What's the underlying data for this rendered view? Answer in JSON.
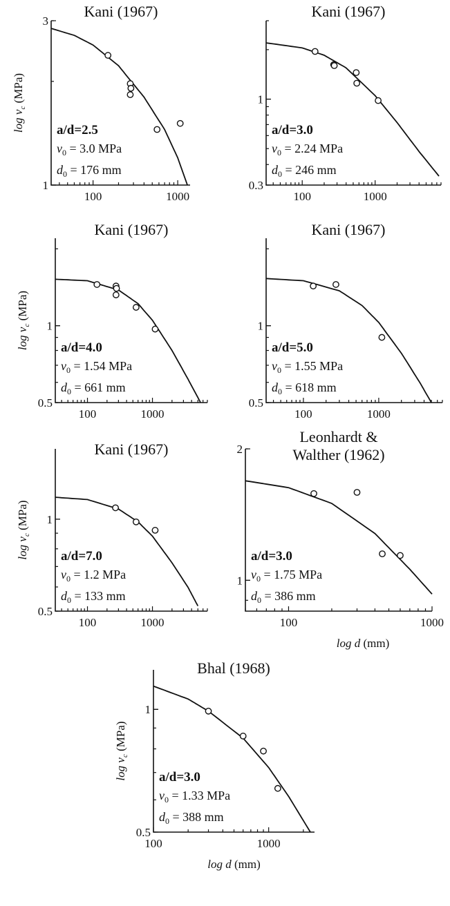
{
  "chart_data": [
    {
      "type": "scatter",
      "title": "Kani (1967)",
      "xscale": "log",
      "yscale": "log",
      "xlim": [
        32,
        1400
      ],
      "ylim": [
        1,
        3
      ],
      "xticks": [
        100,
        1000
      ],
      "xtick_labels": [
        "100",
        "1000"
      ],
      "yticks": [
        1,
        3
      ],
      "ytick_labels": [
        "1",
        "3"
      ],
      "ylabel": "log v_c (MPa)",
      "xlabel": "",
      "annotation": {
        "ad": "a/d=2.5",
        "v0": "v_0 = 3.0 MPa",
        "d0": "d_0 = 176 mm"
      },
      "points": {
        "x": [
          150,
          275,
          280,
          275,
          570,
          1070
        ],
        "y": [
          2.38,
          1.97,
          1.91,
          1.83,
          1.45,
          1.51
        ]
      },
      "curve": {
        "x": [
          32,
          60,
          100,
          200,
          400,
          700,
          1000,
          1300
        ],
        "y": [
          2.85,
          2.72,
          2.55,
          2.22,
          1.8,
          1.45,
          1.2,
          1.0
        ]
      }
    },
    {
      "type": "scatter",
      "title": "Kani (1967)",
      "xscale": "log",
      "yscale": "log",
      "xlim": [
        32,
        8000
      ],
      "ylim": [
        0.3,
        3
      ],
      "xticks": [
        100,
        1000
      ],
      "xtick_labels": [
        "100",
        "1000"
      ],
      "yticks": [
        0.3,
        1
      ],
      "ytick_labels": [
        "0.3",
        "1"
      ],
      "ylabel": "",
      "xlabel": "",
      "annotation": {
        "ad": "a/d=3.0",
        "v0": "v_0 = 2.24 MPa",
        "d0": "d_0 = 246 mm"
      },
      "points": {
        "x": [
          150,
          270,
          275,
          550,
          560,
          1100
        ],
        "y": [
          1.95,
          1.62,
          1.6,
          1.45,
          1.25,
          0.98
        ]
      },
      "curve": {
        "x": [
          32,
          100,
          200,
          400,
          1000,
          2000,
          4000,
          7500
        ],
        "y": [
          2.2,
          2.05,
          1.85,
          1.55,
          1.05,
          0.72,
          0.48,
          0.34
        ]
      }
    },
    {
      "type": "scatter",
      "title": "Kani (1967)",
      "xscale": "log",
      "yscale": "log",
      "xlim": [
        32,
        7000
      ],
      "ylim": [
        0.5,
        2.2
      ],
      "xticks": [
        100,
        1000
      ],
      "xtick_labels": [
        "100",
        "1000"
      ],
      "yticks": [
        0.5,
        1
      ],
      "ytick_labels": [
        "0.5",
        "1"
      ],
      "ylabel": "log v_c (MPa)",
      "xlabel": "",
      "annotation": {
        "ad": "a/d=4.0",
        "v0": "v_0 = 1.54 MPa",
        "d0": "d_0 = 661 mm"
      },
      "points": {
        "x": [
          140,
          275,
          280,
          275,
          560,
          1100
        ],
        "y": [
          1.45,
          1.43,
          1.4,
          1.32,
          1.18,
          0.97
        ]
      },
      "curve": {
        "x": [
          32,
          100,
          300,
          600,
          1000,
          2000,
          3500,
          5500
        ],
        "y": [
          1.52,
          1.5,
          1.38,
          1.22,
          1.05,
          0.8,
          0.62,
          0.5
        ]
      }
    },
    {
      "type": "scatter",
      "title": "Kani (1967)",
      "xscale": "log",
      "yscale": "log",
      "xlim": [
        32,
        7000
      ],
      "ylim": [
        0.5,
        2.2
      ],
      "xticks": [
        100,
        1000
      ],
      "xtick_labels": [
        "100",
        "1000"
      ],
      "yticks": [
        0.5,
        1
      ],
      "ytick_labels": [
        "0.5",
        "1"
      ],
      "ylabel": "",
      "xlabel": "",
      "annotation": {
        "ad": "a/d=5.0",
        "v0": "v_0 = 1.55 MPa",
        "d0": "d_0 = 618 mm"
      },
      "points": {
        "x": [
          135,
          270,
          1100
        ],
        "y": [
          1.43,
          1.45,
          0.9
        ]
      },
      "curve": {
        "x": [
          32,
          100,
          300,
          600,
          1000,
          2000,
          3500,
          5000
        ],
        "y": [
          1.53,
          1.5,
          1.37,
          1.2,
          1.03,
          0.78,
          0.6,
          0.5
        ]
      }
    },
    {
      "type": "scatter",
      "title": "Kani (1967)",
      "xscale": "log",
      "yscale": "log",
      "xlim": [
        32,
        7000
      ],
      "ylim": [
        0.5,
        1.7
      ],
      "xticks": [
        100,
        1000
      ],
      "xtick_labels": [
        "100",
        "1000"
      ],
      "yticks": [
        0.5,
        1
      ],
      "ytick_labels": [
        "0.5",
        "1"
      ],
      "ylabel": "log v_c (MPa)",
      "xlabel": "",
      "annotation": {
        "ad": "a/d=7.0",
        "v0": "v_0 = 1.2 MPa",
        "d0": "d_0 = 133 mm"
      },
      "points": {
        "x": [
          270,
          560,
          1100
        ],
        "y": [
          1.09,
          0.98,
          0.92
        ]
      },
      "curve": {
        "x": [
          32,
          100,
          300,
          600,
          1000,
          2000,
          3500,
          5000
        ],
        "y": [
          1.18,
          1.16,
          1.08,
          0.98,
          0.88,
          0.72,
          0.6,
          0.52
        ]
      }
    },
    {
      "type": "scatter",
      "title": "Leonhardt & Walther (1962)",
      "xscale": "log",
      "yscale": "log",
      "xlim": [
        50,
        1000
      ],
      "ylim": [
        0.85,
        2
      ],
      "xticks": [
        100,
        1000
      ],
      "xtick_labels": [
        "100",
        "1000"
      ],
      "yticks": [
        1,
        2
      ],
      "ytick_labels": [
        "1",
        "2"
      ],
      "ylabel": "",
      "xlabel": "log d (mm)",
      "annotation": {
        "ad": "a/d=3.0",
        "v0": "v_0 = 1.75 MPa",
        "d0": "d_0 = 386 mm"
      },
      "points": {
        "x": [
          150,
          300,
          450,
          600
        ],
        "y": [
          1.58,
          1.59,
          1.15,
          1.14
        ]
      },
      "curve": {
        "x": [
          50,
          100,
          200,
          400,
          700,
          1000
        ],
        "y": [
          1.69,
          1.63,
          1.5,
          1.28,
          1.06,
          0.93
        ]
      }
    },
    {
      "type": "scatter",
      "title": "Bhal (1968)",
      "xscale": "log",
      "yscale": "log",
      "xlim": [
        100,
        2500
      ],
      "ylim": [
        0.5,
        1.25
      ],
      "xticks": [
        100,
        1000
      ],
      "xtick_labels": [
        "100",
        "1000"
      ],
      "yticks": [
        0.5,
        1
      ],
      "ytick_labels": [
        "0.5",
        "1"
      ],
      "ylabel": "log v_c (MPa)",
      "xlabel": "log d (mm)",
      "annotation": {
        "ad": "a/d=3.0",
        "v0": "v_0 = 1.33 MPa",
        "d0": "d_0 = 388 mm"
      },
      "points": {
        "x": [
          300,
          600,
          900,
          1200
        ],
        "y": [
          0.99,
          0.86,
          0.79,
          0.64
        ]
      },
      "curve": {
        "x": [
          100,
          200,
          300,
          600,
          1000,
          1500,
          2300
        ],
        "y": [
          1.14,
          1.06,
          0.99,
          0.85,
          0.72,
          0.61,
          0.5
        ]
      }
    }
  ]
}
